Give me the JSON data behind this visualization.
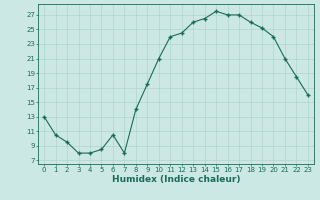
{
  "x": [
    0,
    1,
    2,
    3,
    4,
    5,
    6,
    7,
    8,
    9,
    10,
    11,
    12,
    13,
    14,
    15,
    16,
    17,
    18,
    19,
    20,
    21,
    22,
    23
  ],
  "y": [
    13,
    10.5,
    9.5,
    8,
    8,
    8.5,
    10.5,
    8,
    14,
    17.5,
    21,
    24,
    24.5,
    26,
    26.5,
    27.5,
    27,
    27,
    26,
    25.2,
    24,
    21,
    18.5,
    16
  ],
  "line_color": "#1a6b5a",
  "marker": "+",
  "marker_size": 3.5,
  "bg_color": "#cce8e4",
  "grid_color": "#b0d4cf",
  "xlabel": "Humidex (Indice chaleur)",
  "xlabel_fontsize": 6.5,
  "tick_fontsize": 5.0,
  "ylabel_ticks": [
    7,
    9,
    11,
    13,
    15,
    17,
    19,
    21,
    23,
    25,
    27
  ],
  "ylim": [
    6.5,
    28.5
  ],
  "xlim": [
    -0.5,
    23.5
  ],
  "xtick_labels": [
    "0",
    "1",
    "2",
    "3",
    "4",
    "5",
    "6",
    "7",
    "8",
    "9",
    "10",
    "11",
    "12",
    "13",
    "14",
    "15",
    "16",
    "17",
    "18",
    "19",
    "20",
    "21",
    "22",
    "23"
  ]
}
